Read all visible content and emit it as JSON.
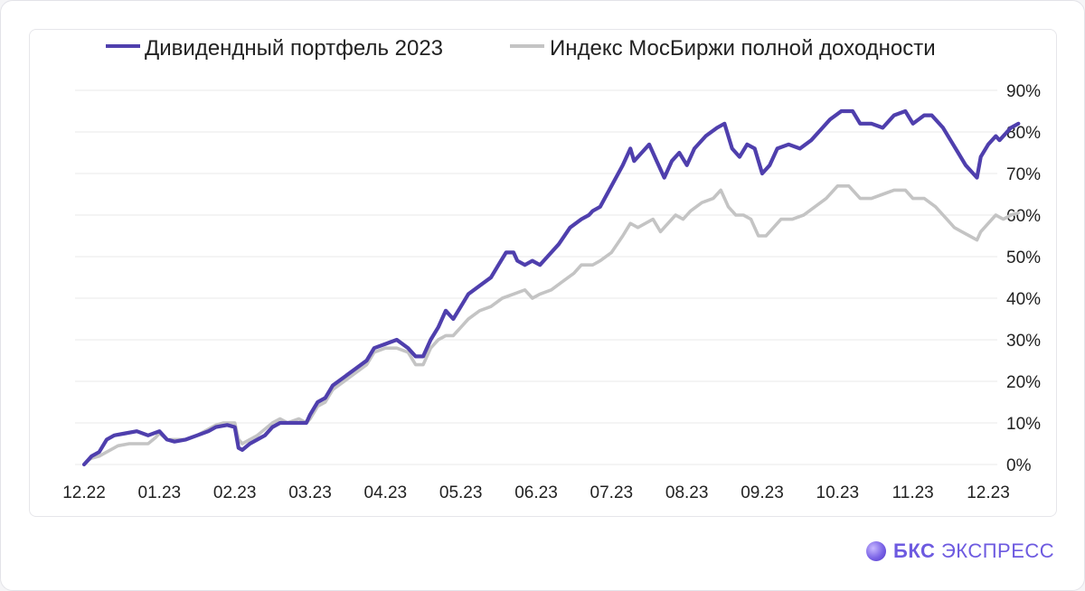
{
  "chart_data": {
    "type": "line",
    "legend": [
      {
        "name": "Дивидендный портфель 2023",
        "color": "#4f3fad"
      },
      {
        "name": "Индекс МосБиржи полной доходности",
        "color": "#c4c4c4"
      }
    ],
    "x_ticks": [
      "12.22",
      "01.23",
      "02.23",
      "03.23",
      "04.23",
      "05.23",
      "06.23",
      "07.23",
      "08.23",
      "09.23",
      "10.23",
      "11.23",
      "12.23"
    ],
    "y_ticks": [
      "0%",
      "10%",
      "20%",
      "30%",
      "40%",
      "50%",
      "60%",
      "70%",
      "80%",
      "90%"
    ],
    "ylim": [
      0,
      90
    ],
    "y_axis_position": "right",
    "grid": true,
    "legend_position": "top",
    "series": [
      {
        "name": "Дивидендный портфель 2023",
        "color": "#4f3fad",
        "points": [
          [
            0.0,
            0
          ],
          [
            0.05,
            1
          ],
          [
            0.1,
            2
          ],
          [
            0.2,
            3
          ],
          [
            0.3,
            6
          ],
          [
            0.4,
            7
          ],
          [
            0.55,
            7.5
          ],
          [
            0.7,
            8
          ],
          [
            0.85,
            7
          ],
          [
            1.0,
            8
          ],
          [
            1.1,
            6
          ],
          [
            1.2,
            5.5
          ],
          [
            1.35,
            6
          ],
          [
            1.5,
            7
          ],
          [
            1.65,
            8
          ],
          [
            1.75,
            9
          ],
          [
            1.9,
            9.5
          ],
          [
            2.0,
            9
          ],
          [
            2.05,
            4
          ],
          [
            2.1,
            3.5
          ],
          [
            2.2,
            5
          ],
          [
            2.3,
            6
          ],
          [
            2.4,
            7
          ],
          [
            2.5,
            9
          ],
          [
            2.6,
            10
          ],
          [
            2.7,
            10
          ],
          [
            2.85,
            10
          ],
          [
            2.95,
            10
          ],
          [
            3.0,
            12
          ],
          [
            3.1,
            15
          ],
          [
            3.2,
            16
          ],
          [
            3.3,
            19
          ],
          [
            3.45,
            21
          ],
          [
            3.6,
            23
          ],
          [
            3.75,
            25
          ],
          [
            3.85,
            28
          ],
          [
            4.0,
            29
          ],
          [
            4.15,
            30
          ],
          [
            4.3,
            28
          ],
          [
            4.4,
            26
          ],
          [
            4.5,
            26
          ],
          [
            4.6,
            30
          ],
          [
            4.7,
            33
          ],
          [
            4.8,
            37
          ],
          [
            4.9,
            35
          ],
          [
            5.0,
            38
          ],
          [
            5.1,
            41
          ],
          [
            5.25,
            43
          ],
          [
            5.4,
            45
          ],
          [
            5.5,
            48
          ],
          [
            5.6,
            51
          ],
          [
            5.7,
            51
          ],
          [
            5.75,
            49
          ],
          [
            5.85,
            48
          ],
          [
            5.95,
            49
          ],
          [
            6.05,
            48
          ],
          [
            6.15,
            50
          ],
          [
            6.3,
            53
          ],
          [
            6.45,
            57
          ],
          [
            6.6,
            59
          ],
          [
            6.7,
            60
          ],
          [
            6.75,
            61
          ],
          [
            6.85,
            62
          ],
          [
            7.0,
            67
          ],
          [
            7.15,
            72
          ],
          [
            7.25,
            76
          ],
          [
            7.3,
            73
          ],
          [
            7.4,
            75
          ],
          [
            7.5,
            77
          ],
          [
            7.6,
            73
          ],
          [
            7.7,
            69
          ],
          [
            7.8,
            73
          ],
          [
            7.9,
            75
          ],
          [
            8.0,
            72
          ],
          [
            8.1,
            76
          ],
          [
            8.25,
            79
          ],
          [
            8.4,
            81
          ],
          [
            8.5,
            82
          ],
          [
            8.6,
            76
          ],
          [
            8.7,
            74
          ],
          [
            8.8,
            77
          ],
          [
            8.9,
            76
          ],
          [
            9.0,
            70
          ],
          [
            9.1,
            72
          ],
          [
            9.2,
            76
          ],
          [
            9.35,
            77
          ],
          [
            9.5,
            76
          ],
          [
            9.65,
            78
          ],
          [
            9.8,
            81
          ],
          [
            9.9,
            83
          ],
          [
            10.05,
            85
          ],
          [
            10.2,
            85
          ],
          [
            10.3,
            82
          ],
          [
            10.45,
            82
          ],
          [
            10.6,
            81
          ],
          [
            10.75,
            84
          ],
          [
            10.9,
            85
          ],
          [
            11.0,
            82
          ],
          [
            11.15,
            84
          ],
          [
            11.25,
            84
          ],
          [
            11.4,
            81
          ],
          [
            11.5,
            78
          ],
          [
            11.6,
            75
          ],
          [
            11.7,
            72
          ],
          [
            11.8,
            70
          ],
          [
            11.85,
            69
          ],
          [
            11.9,
            74
          ],
          [
            12.0,
            77
          ],
          [
            12.1,
            79
          ],
          [
            12.15,
            78
          ],
          [
            12.3,
            81
          ],
          [
            12.4,
            82
          ]
        ]
      },
      {
        "name": "Индекс МосБиржи полной доходности",
        "color": "#c4c4c4",
        "points": [
          [
            0.0,
            0
          ],
          [
            0.05,
            1
          ],
          [
            0.1,
            1.5
          ],
          [
            0.2,
            2
          ],
          [
            0.3,
            3
          ],
          [
            0.45,
            4.5
          ],
          [
            0.6,
            5
          ],
          [
            0.75,
            5
          ],
          [
            0.85,
            5
          ],
          [
            0.95,
            6.5
          ],
          [
            1.0,
            7.5
          ],
          [
            1.1,
            6
          ],
          [
            1.2,
            6
          ],
          [
            1.35,
            6
          ],
          [
            1.5,
            7
          ],
          [
            1.6,
            8
          ],
          [
            1.75,
            9.5
          ],
          [
            1.85,
            10
          ],
          [
            2.0,
            10
          ],
          [
            2.05,
            6
          ],
          [
            2.1,
            5
          ],
          [
            2.2,
            6
          ],
          [
            2.3,
            7
          ],
          [
            2.4,
            8.5
          ],
          [
            2.5,
            10
          ],
          [
            2.6,
            11
          ],
          [
            2.7,
            10
          ],
          [
            2.85,
            11
          ],
          [
            2.95,
            10
          ],
          [
            3.0,
            11
          ],
          [
            3.1,
            14
          ],
          [
            3.2,
            15
          ],
          [
            3.3,
            18
          ],
          [
            3.45,
            20
          ],
          [
            3.6,
            22
          ],
          [
            3.75,
            24
          ],
          [
            3.85,
            27
          ],
          [
            4.0,
            28
          ],
          [
            4.15,
            28
          ],
          [
            4.3,
            27
          ],
          [
            4.4,
            24
          ],
          [
            4.5,
            24
          ],
          [
            4.6,
            28
          ],
          [
            4.7,
            30
          ],
          [
            4.8,
            31
          ],
          [
            4.9,
            31
          ],
          [
            5.0,
            33
          ],
          [
            5.1,
            35
          ],
          [
            5.25,
            37
          ],
          [
            5.4,
            38
          ],
          [
            5.55,
            40
          ],
          [
            5.7,
            41
          ],
          [
            5.85,
            42
          ],
          [
            5.95,
            40
          ],
          [
            6.05,
            41
          ],
          [
            6.2,
            42
          ],
          [
            6.35,
            44
          ],
          [
            6.5,
            46
          ],
          [
            6.6,
            48
          ],
          [
            6.75,
            48
          ],
          [
            6.85,
            49
          ],
          [
            7.0,
            51
          ],
          [
            7.15,
            55
          ],
          [
            7.25,
            58
          ],
          [
            7.35,
            57
          ],
          [
            7.45,
            58
          ],
          [
            7.55,
            59
          ],
          [
            7.65,
            56
          ],
          [
            7.75,
            58
          ],
          [
            7.85,
            60
          ],
          [
            7.95,
            59
          ],
          [
            8.05,
            61
          ],
          [
            8.2,
            63
          ],
          [
            8.35,
            64
          ],
          [
            8.45,
            66
          ],
          [
            8.55,
            62
          ],
          [
            8.65,
            60
          ],
          [
            8.75,
            60
          ],
          [
            8.85,
            59
          ],
          [
            8.95,
            55
          ],
          [
            9.05,
            55
          ],
          [
            9.15,
            57
          ],
          [
            9.25,
            59
          ],
          [
            9.4,
            59
          ],
          [
            9.55,
            60
          ],
          [
            9.7,
            62
          ],
          [
            9.85,
            64
          ],
          [
            10.0,
            67
          ],
          [
            10.15,
            67
          ],
          [
            10.3,
            64
          ],
          [
            10.45,
            64
          ],
          [
            10.6,
            65
          ],
          [
            10.75,
            66
          ],
          [
            10.9,
            66
          ],
          [
            11.0,
            64
          ],
          [
            11.15,
            64
          ],
          [
            11.3,
            62
          ],
          [
            11.45,
            59
          ],
          [
            11.55,
            57
          ],
          [
            11.65,
            56
          ],
          [
            11.75,
            55
          ],
          [
            11.85,
            54
          ],
          [
            11.9,
            56
          ],
          [
            12.0,
            58
          ],
          [
            12.1,
            60
          ],
          [
            12.2,
            59
          ],
          [
            12.3,
            60
          ],
          [
            12.4,
            60.5
          ]
        ]
      }
    ]
  },
  "brand": {
    "name_bold": "БКС",
    "name_rest": "ЭКСПРЕСС"
  }
}
